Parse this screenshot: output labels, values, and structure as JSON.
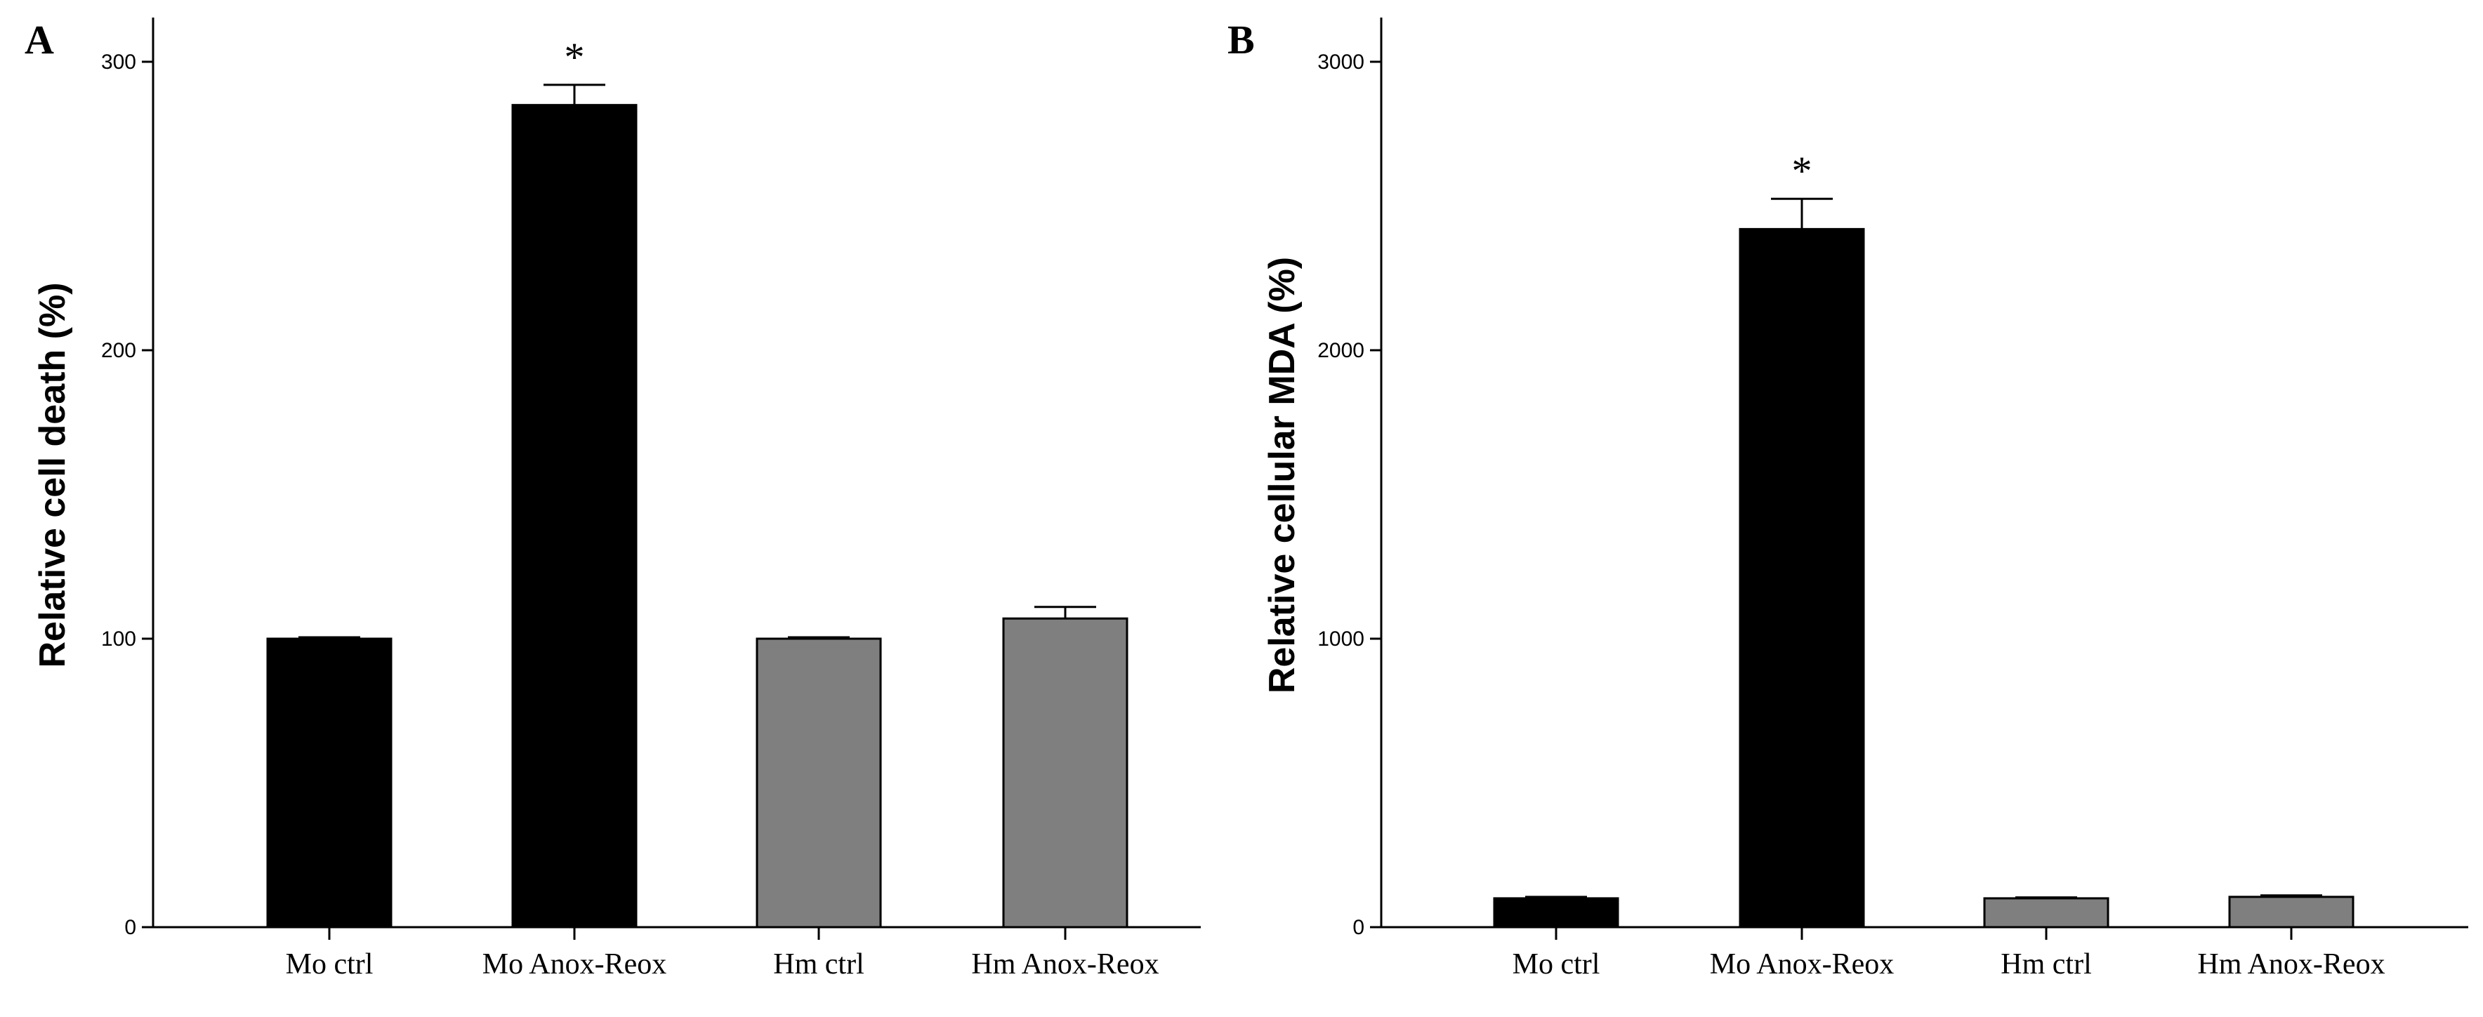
{
  "chart_data": [
    {
      "type": "bar",
      "panel": "A",
      "title": "",
      "xlabel": "",
      "ylabel": "Relative cell death (%)",
      "ylim": [
        0,
        300
      ],
      "yticks": [
        0,
        100,
        200,
        300
      ],
      "categories": [
        "Mo ctrl",
        "Mo Anox-Reox",
        "Hm ctrl",
        "Hm Anox-Reox"
      ],
      "values": [
        100,
        285,
        100,
        107
      ],
      "errors": [
        0.5,
        7,
        0.5,
        4
      ],
      "significance": [
        "",
        "*",
        "",
        ""
      ],
      "bar_colors": [
        "#000000",
        "#000000",
        "#7f7f7f",
        "#7f7f7f"
      ],
      "grid": false,
      "legend": "none"
    },
    {
      "type": "bar",
      "panel": "B",
      "title": "",
      "xlabel": "",
      "ylabel": "Relative cellular MDA (%)",
      "ylim": [
        0,
        3000
      ],
      "yticks": [
        0,
        1000,
        2000,
        3000
      ],
      "categories": [
        "Mo ctrl",
        "Mo Anox-Reox",
        "Hm ctrl",
        "Hm Anox-Reox"
      ],
      "values": [
        100,
        2420,
        100,
        105
      ],
      "errors": [
        5,
        105,
        3,
        5
      ],
      "significance": [
        "",
        "*",
        "",
        ""
      ],
      "bar_colors": [
        "#000000",
        "#000000",
        "#7f7f7f",
        "#7f7f7f"
      ],
      "grid": false,
      "legend": "none"
    }
  ]
}
